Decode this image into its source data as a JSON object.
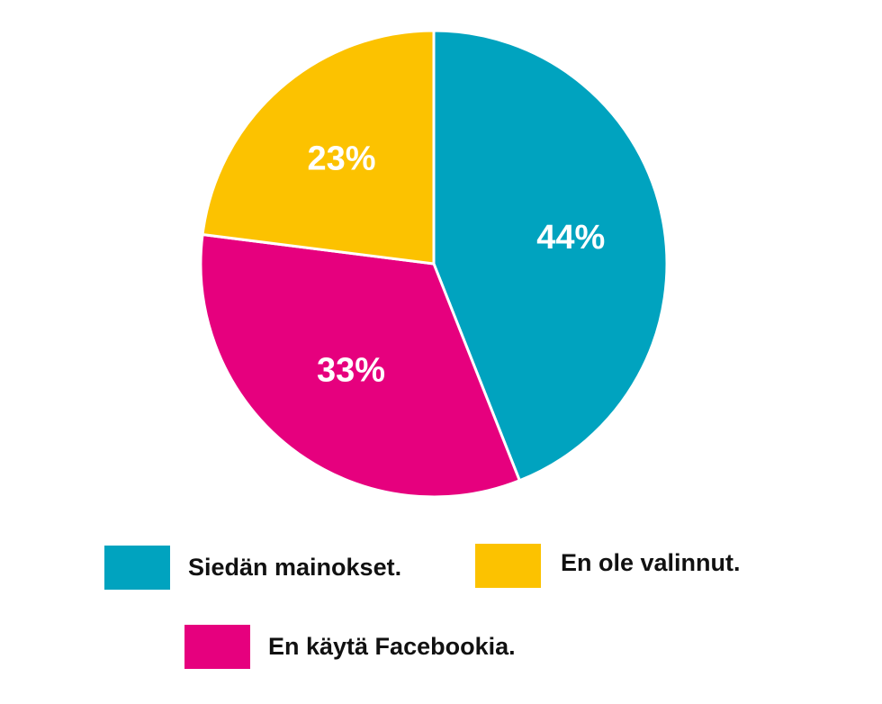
{
  "chart_data": {
    "type": "pie",
    "title": "",
    "start_angle_deg": 0,
    "direction": "clockwise",
    "slices": [
      {
        "label": "Siedän mainokset.",
        "value": 44,
        "value_label": "44%",
        "color": "#00a3bf"
      },
      {
        "label": "En käytä Facebookia.",
        "value": 33,
        "value_label": "33%",
        "color": "#e6007e"
      },
      {
        "label": "En ole valinnut.",
        "value": 23,
        "value_label": "23%",
        "color": "#fcc200"
      }
    ],
    "legend": {
      "placement": "bottom",
      "items": [
        {
          "label": "Siedän mainokset.",
          "color": "#00a3bf"
        },
        {
          "label": "En ole valinnut.",
          "color": "#fcc200"
        },
        {
          "label": "En käytä Facebookia.",
          "color": "#e6007e"
        }
      ]
    }
  }
}
